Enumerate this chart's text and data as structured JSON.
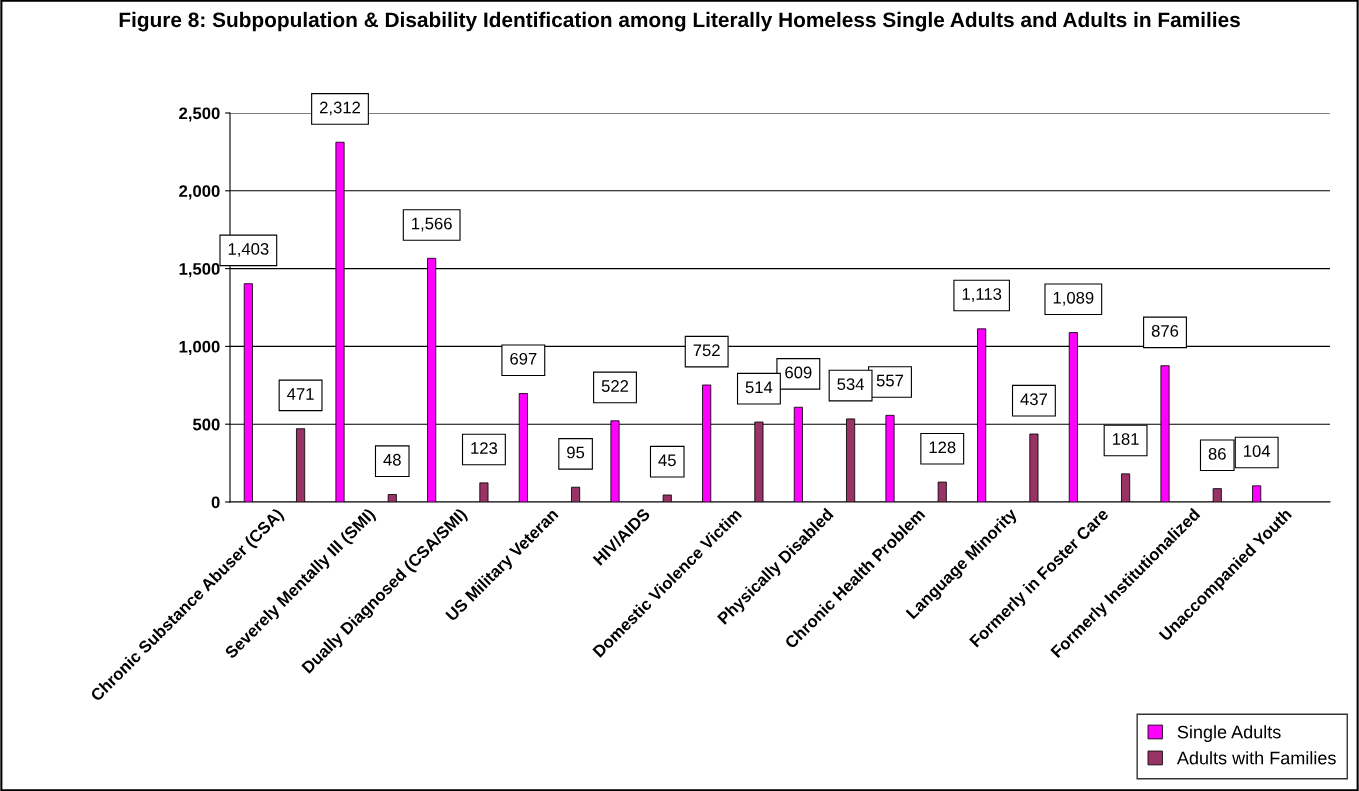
{
  "chart_data": {
    "type": "bar",
    "title": "Figure 8: Subpopulation & Disability Identification among Literally Homeless Single Adults and Adults in Families",
    "categories": [
      "Chronic Substance Abuser (CSA)",
      "Severely Mentally Ill (SMI)",
      "Dually Diagnosed (CSA/SMI)",
      "US Military Veteran",
      "HIV/AIDS",
      "Domestic Violence Victim",
      "Physically Disabled",
      "Chronic Health Problem",
      "Language Minority",
      "Formerly in Foster Care",
      "Formerly Institutionalized",
      "Unaccompanied Youth"
    ],
    "series": [
      {
        "name": "Single Adults",
        "color": "#ff00ff",
        "values": [
          1403,
          2312,
          1566,
          697,
          522,
          752,
          609,
          557,
          1113,
          1089,
          876,
          104
        ],
        "value_labels": [
          "1,403",
          "2,312",
          "1,566",
          "697",
          "522",
          "752",
          "609",
          "557",
          "1,113",
          "1,089",
          "876",
          "104"
        ]
      },
      {
        "name": "Adults with Families",
        "color": "#993366",
        "values": [
          471,
          48,
          123,
          95,
          45,
          514,
          534,
          128,
          437,
          181,
          86,
          null
        ],
        "value_labels": [
          "471",
          "48",
          "123",
          "95",
          "45",
          "514",
          "534",
          "128",
          "437",
          "181",
          "86",
          null
        ]
      }
    ],
    "ylim": [
      0,
      2500
    ],
    "yticks": [
      0,
      {
        "value": 500,
        "label": "500"
      },
      {
        "value": 1000,
        "label": "1,000"
      },
      {
        "value": 1500,
        "label": "1,500"
      },
      {
        "value": 2000,
        "label": "2,000"
      },
      {
        "value": 2500,
        "label": "2,500"
      }
    ],
    "grid": "y",
    "legend": "bottom right"
  }
}
